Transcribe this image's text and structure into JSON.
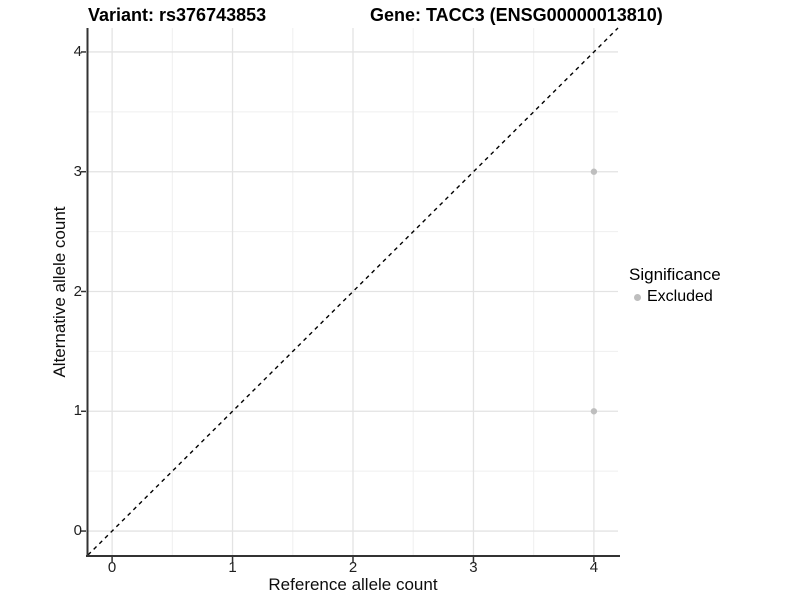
{
  "title": {
    "variant": "Variant: rs376743853",
    "gene": "Gene: TACC3 (ENSG00000013810)"
  },
  "chart_data": {
    "type": "scatter",
    "title_left": "Variant: rs376743853",
    "title_right": "Gene: TACC3 (ENSG00000013810)",
    "xlabel": "Reference allele count",
    "ylabel": "Alternative allele count",
    "xlim": [
      -0.2,
      4.2
    ],
    "ylim": [
      -0.2,
      4.2
    ],
    "x_ticks": [
      0,
      1,
      2,
      3,
      4
    ],
    "y_ticks": [
      0,
      1,
      2,
      3,
      4
    ],
    "x_minor_ticks": [
      0.5,
      1.5,
      2.5,
      3.5
    ],
    "y_minor_ticks": [
      0.5,
      1.5,
      2.5,
      3.5
    ],
    "grid": "major and minor, light gray, white panel",
    "reference_line": {
      "type": "identity y=x",
      "style": "dashed",
      "color": "#000000"
    },
    "series": [
      {
        "name": "Excluded",
        "color": "#bebebe",
        "points": [
          {
            "x": 4,
            "y": 3
          },
          {
            "x": 4,
            "y": 1
          }
        ]
      }
    ],
    "legend": {
      "title": "Significance",
      "position": "right",
      "items": [
        {
          "label": "Excluded",
          "color": "#bebebe"
        }
      ]
    }
  },
  "colors": {
    "background": "#ffffff",
    "grid_major": "#e3e3e3",
    "grid_minor": "#efefef",
    "axis_line": "#333333",
    "tick_mark": "#333333",
    "point": "#bebebe",
    "text": "#000000"
  }
}
